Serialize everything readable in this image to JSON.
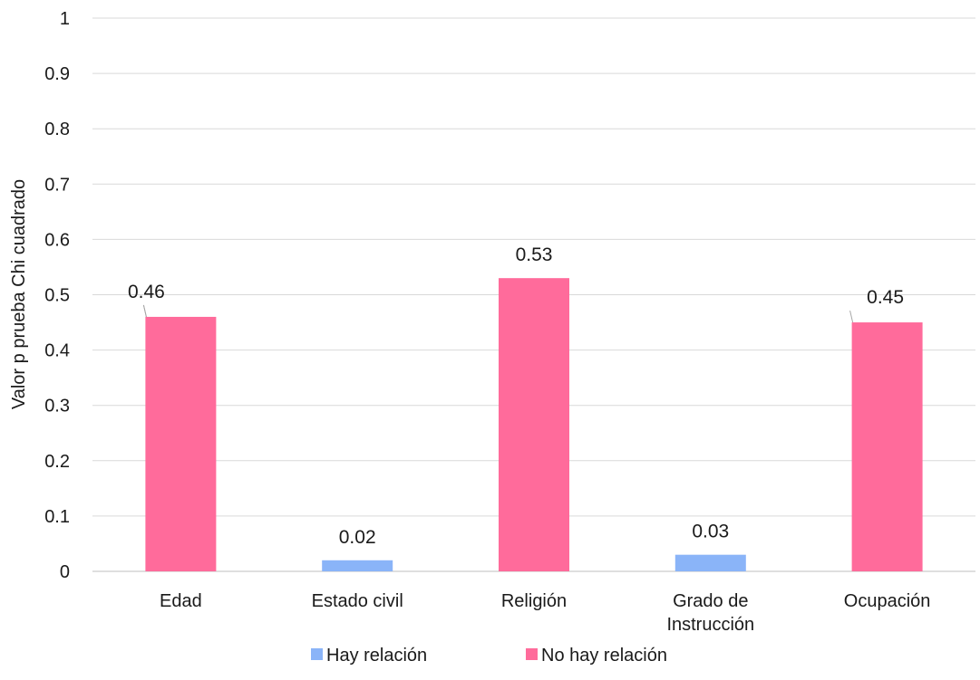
{
  "chart_data": {
    "type": "bar",
    "categories": [
      "Edad",
      "Estado civil",
      "Religión",
      "Grado de Instrucción",
      "Ocupación"
    ],
    "category_lines": [
      [
        "Edad"
      ],
      [
        "Estado civil"
      ],
      [
        "Religión"
      ],
      [
        "Grado de",
        "Instrucción"
      ],
      [
        "Ocupación"
      ]
    ],
    "values": [
      0.46,
      0.02,
      0.53,
      0.03,
      0.45
    ],
    "data_labels": [
      "0.46",
      "0.02",
      "0.53",
      "0.03",
      "0.45"
    ],
    "groups": [
      "No hay relación",
      "Hay relación",
      "No hay relación",
      "Hay relación",
      "No hay relación"
    ],
    "legend": [
      {
        "label": "Hay relación",
        "color": "#8ab4f8"
      },
      {
        "label": "No hay relación",
        "color": "#ff6b9b"
      }
    ],
    "title": "",
    "xlabel": "",
    "ylabel": "Valor p prueba Chi cuadrado",
    "ylim": [
      0,
      1
    ],
    "yticks": [
      0,
      0.1,
      0.2,
      0.3,
      0.4,
      0.5,
      0.6,
      0.7,
      0.8,
      0.9,
      1
    ],
    "ytick_labels": [
      "0",
      "0.1",
      "0.2",
      "0.3",
      "0.4",
      "0.5",
      "0.6",
      "0.7",
      "0.8",
      "0.9",
      "1"
    ],
    "grid": true,
    "legend_position": "bottom"
  }
}
